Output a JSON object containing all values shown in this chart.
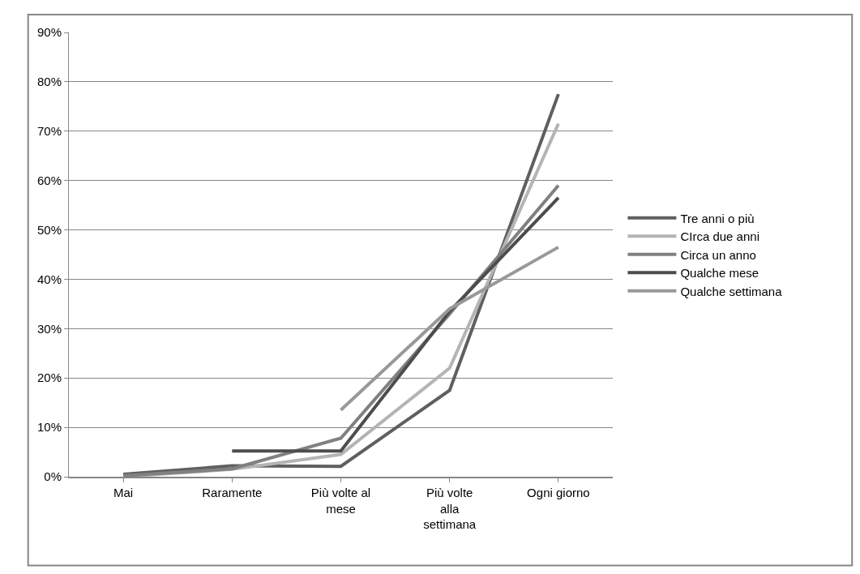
{
  "chart_data": {
    "type": "line",
    "categories": [
      "Mai",
      "Raramente",
      "Più volte al mese",
      "Più volte alla settimana",
      "Ogni giorno"
    ],
    "series": [
      {
        "name": "Tre anni o più",
        "color": "#5f5f5f",
        "values": [
          0.5,
          2.2,
          2.1,
          17.5,
          77.5
        ]
      },
      {
        "name": "CIrca due anni",
        "color": "#b4b4b4",
        "values": [
          0,
          1.5,
          4.5,
          22,
          71.5
        ]
      },
      {
        "name": "Circa un anno",
        "color": "#808080",
        "values": [
          0.2,
          1.6,
          7.8,
          33,
          59
        ]
      },
      {
        "name": "Qualche mese",
        "color": "#4d4d4d",
        "values": [
          null,
          5.2,
          5.2,
          33.5,
          56.5
        ]
      },
      {
        "name": "Qualche settimana",
        "color": "#999999",
        "values": [
          null,
          null,
          13.5,
          34,
          46.5
        ]
      }
    ],
    "ylim": [
      0,
      90
    ],
    "yticks": [
      {
        "value": 0,
        "label": "0%"
      },
      {
        "value": 10,
        "label": "10%"
      },
      {
        "value": 20,
        "label": "20%"
      },
      {
        "value": 30,
        "label": "30%"
      },
      {
        "value": 40,
        "label": "40%"
      },
      {
        "value": 50,
        "label": "50%"
      },
      {
        "value": 60,
        "label": "60%"
      },
      {
        "value": 70,
        "label": "70%"
      },
      {
        "value": 80,
        "label": "80%"
      },
      {
        "value": 90,
        "label": "90%"
      }
    ],
    "grid": "y",
    "legend": "right",
    "marker": "none",
    "line_style": "solid"
  }
}
